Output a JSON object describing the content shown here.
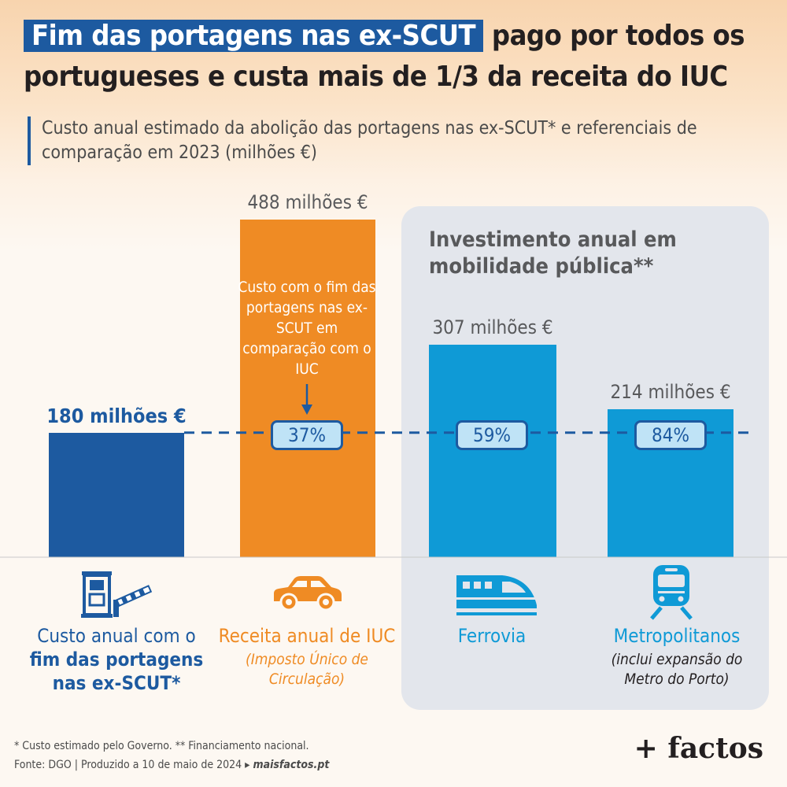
{
  "title": {
    "highlight": "Fim das portagens nas ex-SCUT",
    "rest_line1": "pago por todos os",
    "line2": "portugueses e custa mais de 1/3 da receita do IUC"
  },
  "subtitle": "Custo anual estimado da abolição das portagens nas ex-SCUT* e referenciais de comparação em 2023 (milhões €)",
  "panel_title": "Investimento anual em mobilidade pública**",
  "iuc_note": "Custo com o fim das portagens nas ex-SCUT em comparação com o IUC",
  "chart_data": {
    "type": "bar",
    "categories": [
      "Custo anual com o fim das portagens nas ex-SCUT*",
      "Receita anual de IUC",
      "Ferrovia",
      "Metropolitanos"
    ],
    "values": [
      180,
      488,
      307,
      214
    ],
    "unit": "milhões €",
    "value_labels": [
      "180 milhões €",
      "488 milhões €",
      "307 milhões €",
      "214 milhões €"
    ],
    "comparison_percentages": [
      "37%",
      "59%",
      "84%"
    ],
    "reference_line_value": 180,
    "ylim": [
      0,
      488
    ]
  },
  "categories": {
    "scut": {
      "line1": "Custo anual com o",
      "line2": "fim das portagens",
      "line3": "nas ex-SCUT*",
      "color": "#1d5aa0",
      "icon": "toll-booth-icon"
    },
    "iuc": {
      "name": "Receita anual de IUC",
      "sub": "(Imposto Único de Circulação)",
      "color": "#ef8b24",
      "icon": "car-icon"
    },
    "ferrovia": {
      "name": "Ferrovia",
      "color": "#0f9ad6",
      "icon": "train-icon"
    },
    "metro": {
      "name": "Metropolitanos",
      "sub": "(inclui expansão do Metro do Porto)",
      "color": "#0f9ad6",
      "icon": "metro-icon"
    }
  },
  "footnote": {
    "line1": "* Custo estimado pelo Governo. ** Financiamento nacional.",
    "line2": "Fonte: DGO | Produzido a 10 de maio de 2024 ▸",
    "site": "maisfactos.pt"
  },
  "logo": "+ factos"
}
